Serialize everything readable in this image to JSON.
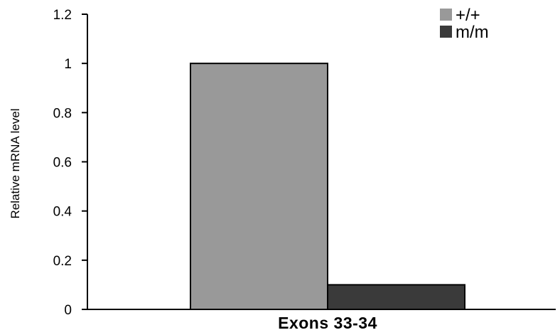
{
  "chart_data": {
    "type": "bar",
    "title": "",
    "xlabel": "",
    "ylabel": "Relative mRNA level",
    "ylim": [
      0,
      1.2
    ],
    "yticks": [
      "0",
      "0.2",
      "0.4",
      "0.6",
      "0.8",
      "1",
      "1.2"
    ],
    "categories": [
      "Exons 33-34"
    ],
    "series": [
      {
        "name": "+/+",
        "values": [
          1.0
        ],
        "color": "#999999"
      },
      {
        "name": "m/m",
        "values": [
          0.1
        ],
        "color": "#3a3a3a"
      }
    ],
    "grid": false,
    "legend": "top-right"
  }
}
